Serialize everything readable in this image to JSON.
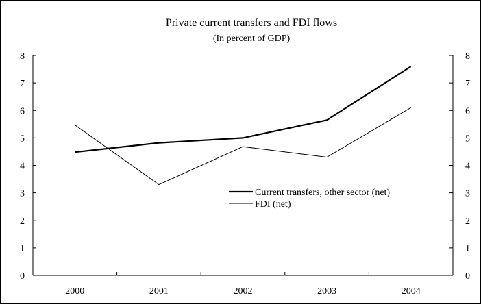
{
  "chart_data": {
    "type": "line",
    "title": "Private current transfers and FDI flows",
    "subtitle": "(In percent of GDP)",
    "x": [
      "2000",
      "2001",
      "2002",
      "2003",
      "2004"
    ],
    "ylim": [
      0,
      8
    ],
    "yticks": [
      "0",
      "1",
      "2",
      "3",
      "4",
      "5",
      "6",
      "7",
      "8"
    ],
    "y_axis": "left and right, same scale",
    "grid": false,
    "legend_position": "center-right",
    "series": [
      {
        "name": "Current transfers, other sector (net)",
        "values": [
          4.48,
          4.82,
          5.0,
          5.65,
          7.6
        ],
        "color": "#000000",
        "style": "thick"
      },
      {
        "name": "FDI (net)",
        "values": [
          5.47,
          3.3,
          4.68,
          4.3,
          6.1
        ],
        "color": "#000000",
        "style": "thin"
      }
    ]
  }
}
